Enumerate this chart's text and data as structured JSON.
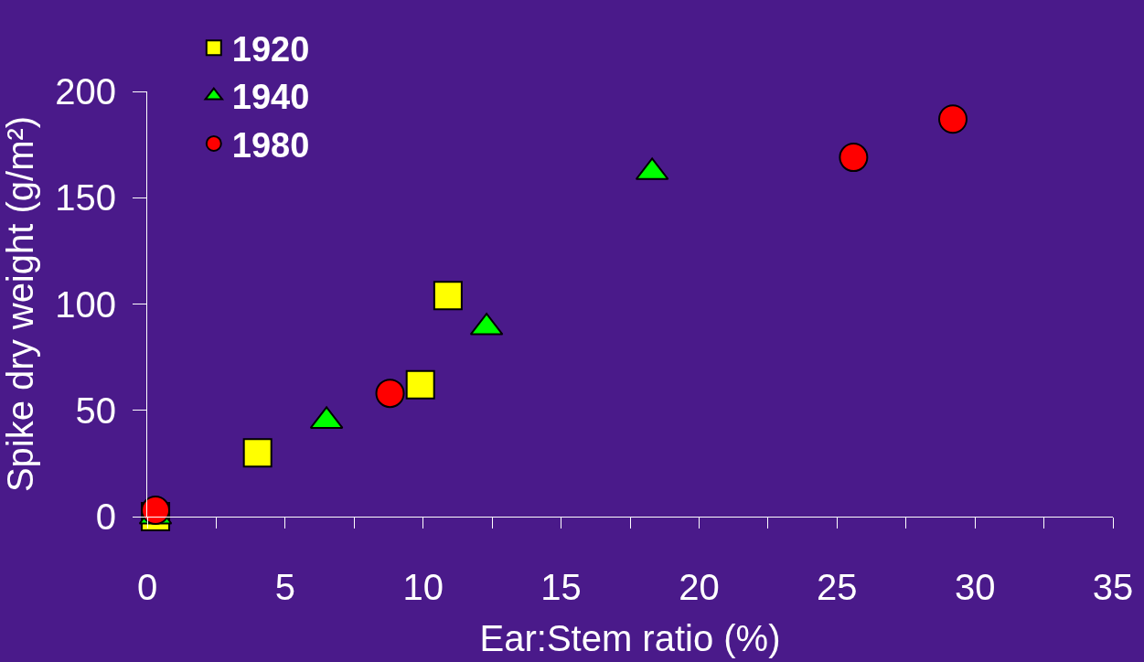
{
  "chart_data": {
    "type": "scatter",
    "xlabel": "Ear:Stem ratio (%)",
    "ylabel": "Spike dry weight (g/m²)",
    "xlim": [
      0,
      35
    ],
    "ylim": [
      0,
      200
    ],
    "xticks": [
      0,
      {
        "value": 2.5,
        "label": null
      },
      5,
      {
        "value": 7.5,
        "label": null
      },
      10,
      {
        "value": 12.5,
        "label": null
      },
      15,
      {
        "value": 17.5,
        "label": null
      },
      20,
      {
        "value": 22.5,
        "label": null
      },
      25,
      {
        "value": 27.5,
        "label": null
      },
      30,
      {
        "value": 32.5,
        "label": null
      },
      35
    ],
    "yticks": [
      0,
      50,
      100,
      150,
      200
    ],
    "grid": false,
    "legend": "top left",
    "series": [
      {
        "name": "1920",
        "color": "#ffff00",
        "marker": "square",
        "x": [
          0.3,
          4.0,
          9.9,
          10.9
        ],
        "values": [
          0,
          30,
          62,
          104
        ]
      },
      {
        "name": "1940",
        "color": "#00ff00",
        "marker": "triangle",
        "x": [
          0.3,
          6.5,
          12.3,
          18.3
        ],
        "values": [
          0,
          45,
          89,
          162
        ]
      },
      {
        "name": "1980",
        "color": "#ff0000",
        "marker": "circle",
        "x": [
          0.3,
          8.8,
          25.6,
          29.2
        ],
        "values": [
          3,
          58,
          169,
          187
        ]
      }
    ]
  }
}
